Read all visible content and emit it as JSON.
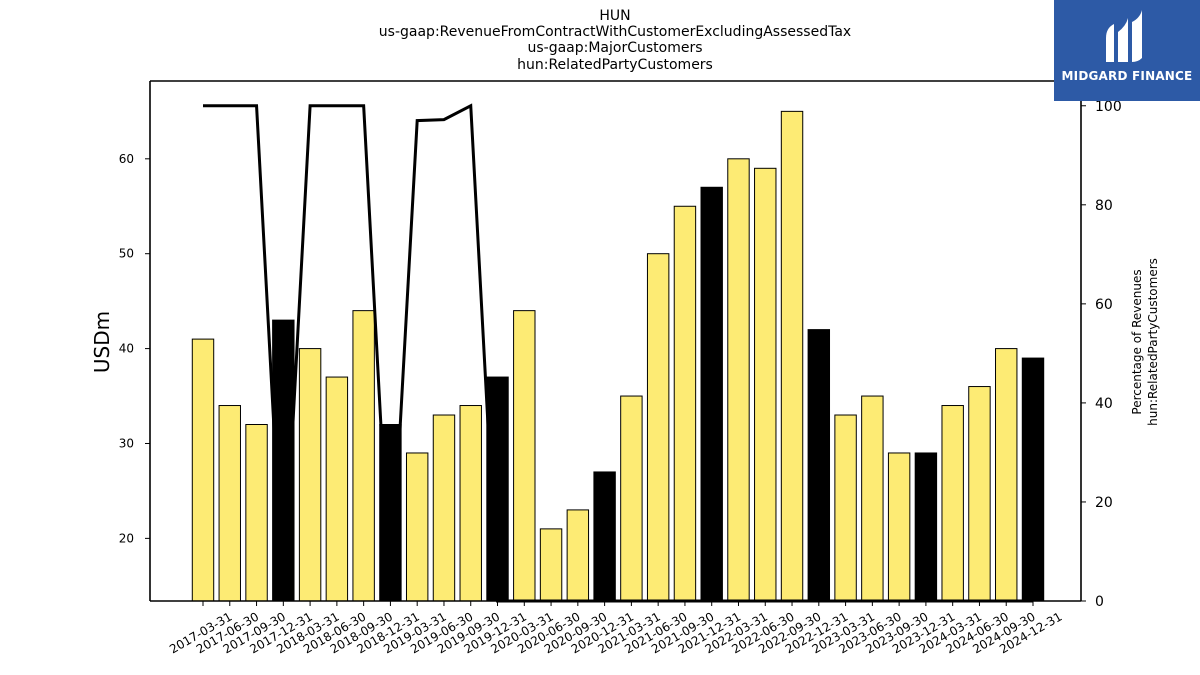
{
  "logo": {
    "text": "MIDGARD FINANCE"
  },
  "chart_data": {
    "type": "bar",
    "title_lines": [
      "HUN",
      "us-gaap:RevenueFromContractWithCustomerExcludingAssessedTax",
      "us-gaap:MajorCustomers",
      "hun:RelatedPartyCustomers"
    ],
    "ylabel": "USDm",
    "y2label_lines": [
      "Percentage of Revenues",
      "hun:RelatedPartyCustomers"
    ],
    "ylim": [
      13.4,
      68.2
    ],
    "y2lim": [
      0,
      105
    ],
    "yticks": [
      20,
      30,
      40,
      50,
      60
    ],
    "y2ticks": [
      0,
      20,
      40,
      60,
      80,
      100
    ],
    "categories": [
      "2017-03-31",
      "2017-06-30",
      "2017-09-30",
      "2017-12-31",
      "2018-03-31",
      "2018-06-30",
      "2018-09-30",
      "2018-12-31",
      "2019-03-31",
      "2019-06-30",
      "2019-09-30",
      "2019-12-31",
      "2020-03-31",
      "2020-06-30",
      "2020-09-30",
      "2020-12-31",
      "2021-03-31",
      "2021-06-30",
      "2021-09-30",
      "2021-12-31",
      "2022-03-31",
      "2022-06-30",
      "2022-09-30",
      "2022-12-31",
      "2023-03-31",
      "2023-06-30",
      "2023-09-30",
      "2023-12-31",
      "2024-03-31",
      "2024-06-30",
      "2024-09-30",
      "2024-12-31"
    ],
    "series": [
      {
        "type": "bar",
        "values": [
          41,
          34,
          32,
          43,
          40,
          37,
          44,
          32,
          29,
          33,
          34,
          37,
          44,
          21,
          23,
          27,
          35,
          50,
          55,
          57,
          60,
          59,
          65,
          42,
          33,
          35,
          29,
          29,
          34,
          36,
          40,
          39
        ],
        "highlight": [
          false,
          false,
          false,
          true,
          false,
          false,
          false,
          true,
          false,
          false,
          false,
          true,
          false,
          false,
          false,
          true,
          false,
          false,
          false,
          true,
          false,
          false,
          false,
          true,
          false,
          false,
          false,
          true,
          false,
          false,
          false,
          true
        ],
        "color": "#fdeb74",
        "highlight_color": "#000000"
      },
      {
        "type": "line",
        "axis": "right",
        "values": [
          100,
          100,
          100,
          0,
          100,
          100,
          100,
          0,
          97,
          97.2,
          100,
          0,
          0,
          0,
          0,
          0,
          0,
          0,
          0,
          0,
          0,
          0,
          0,
          0,
          0,
          0,
          0,
          0,
          0,
          0,
          0,
          0
        ],
        "color": "#000000"
      }
    ],
    "grid": false,
    "legend": "none"
  }
}
